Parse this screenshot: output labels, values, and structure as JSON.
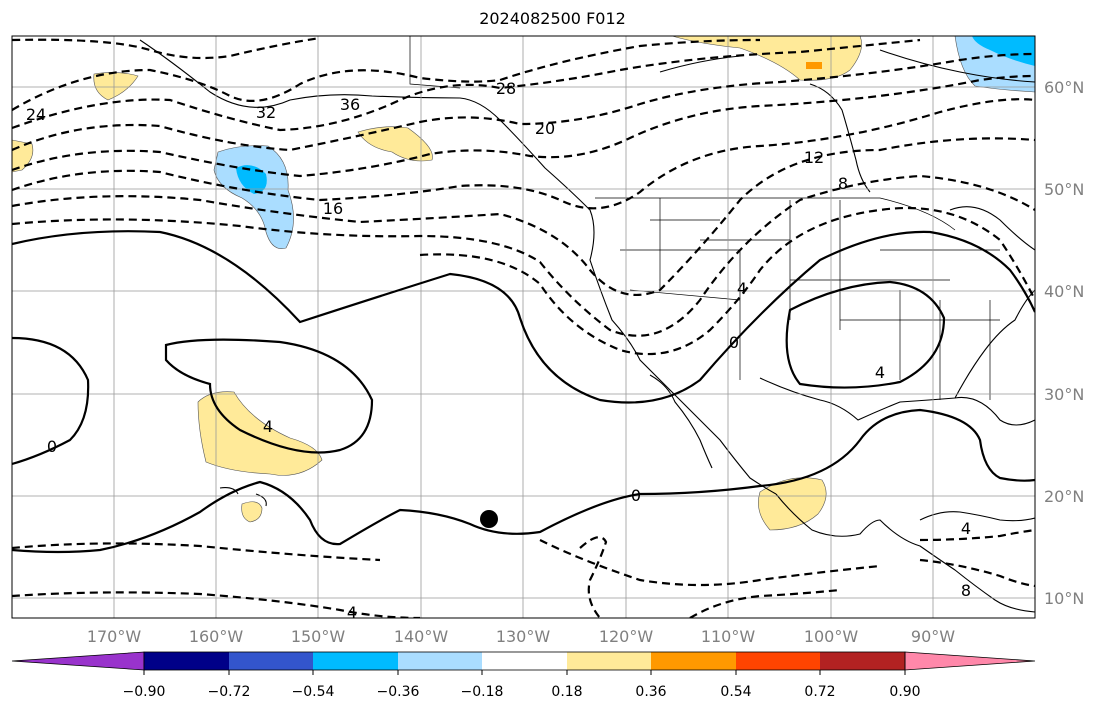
{
  "title": "2024082500 F012",
  "lon_labels": [
    "170°W",
    "160°W",
    "150°W",
    "140°W",
    "130°W",
    "120°W",
    "110°W",
    "100°W",
    "90°W"
  ],
  "lat_labels": [
    "60°N",
    "50°N",
    "40°N",
    "30°N",
    "20°N",
    "10°N"
  ],
  "colorbar": {
    "colors": [
      "#9933cc",
      "#000088",
      "#3355cc",
      "#00bbff",
      "#aaddff",
      "#ffffff",
      "#ffea99",
      "#ff9900",
      "#ff4400",
      "#b22222",
      "#ff88aa"
    ],
    "tick_labels": [
      "−0.90",
      "−0.72",
      "−0.54",
      "−0.36",
      "−0.18",
      "0.18",
      "0.36",
      "0.54",
      "0.72",
      "0.90"
    ]
  },
  "contour_labels": [
    "24",
    "32",
    "36",
    "28",
    "20",
    "16",
    "12",
    "8",
    "4",
    "0",
    "0",
    "4",
    "4",
    "0",
    "4",
    "8",
    "4"
  ],
  "marker": "storm-center-marker"
}
